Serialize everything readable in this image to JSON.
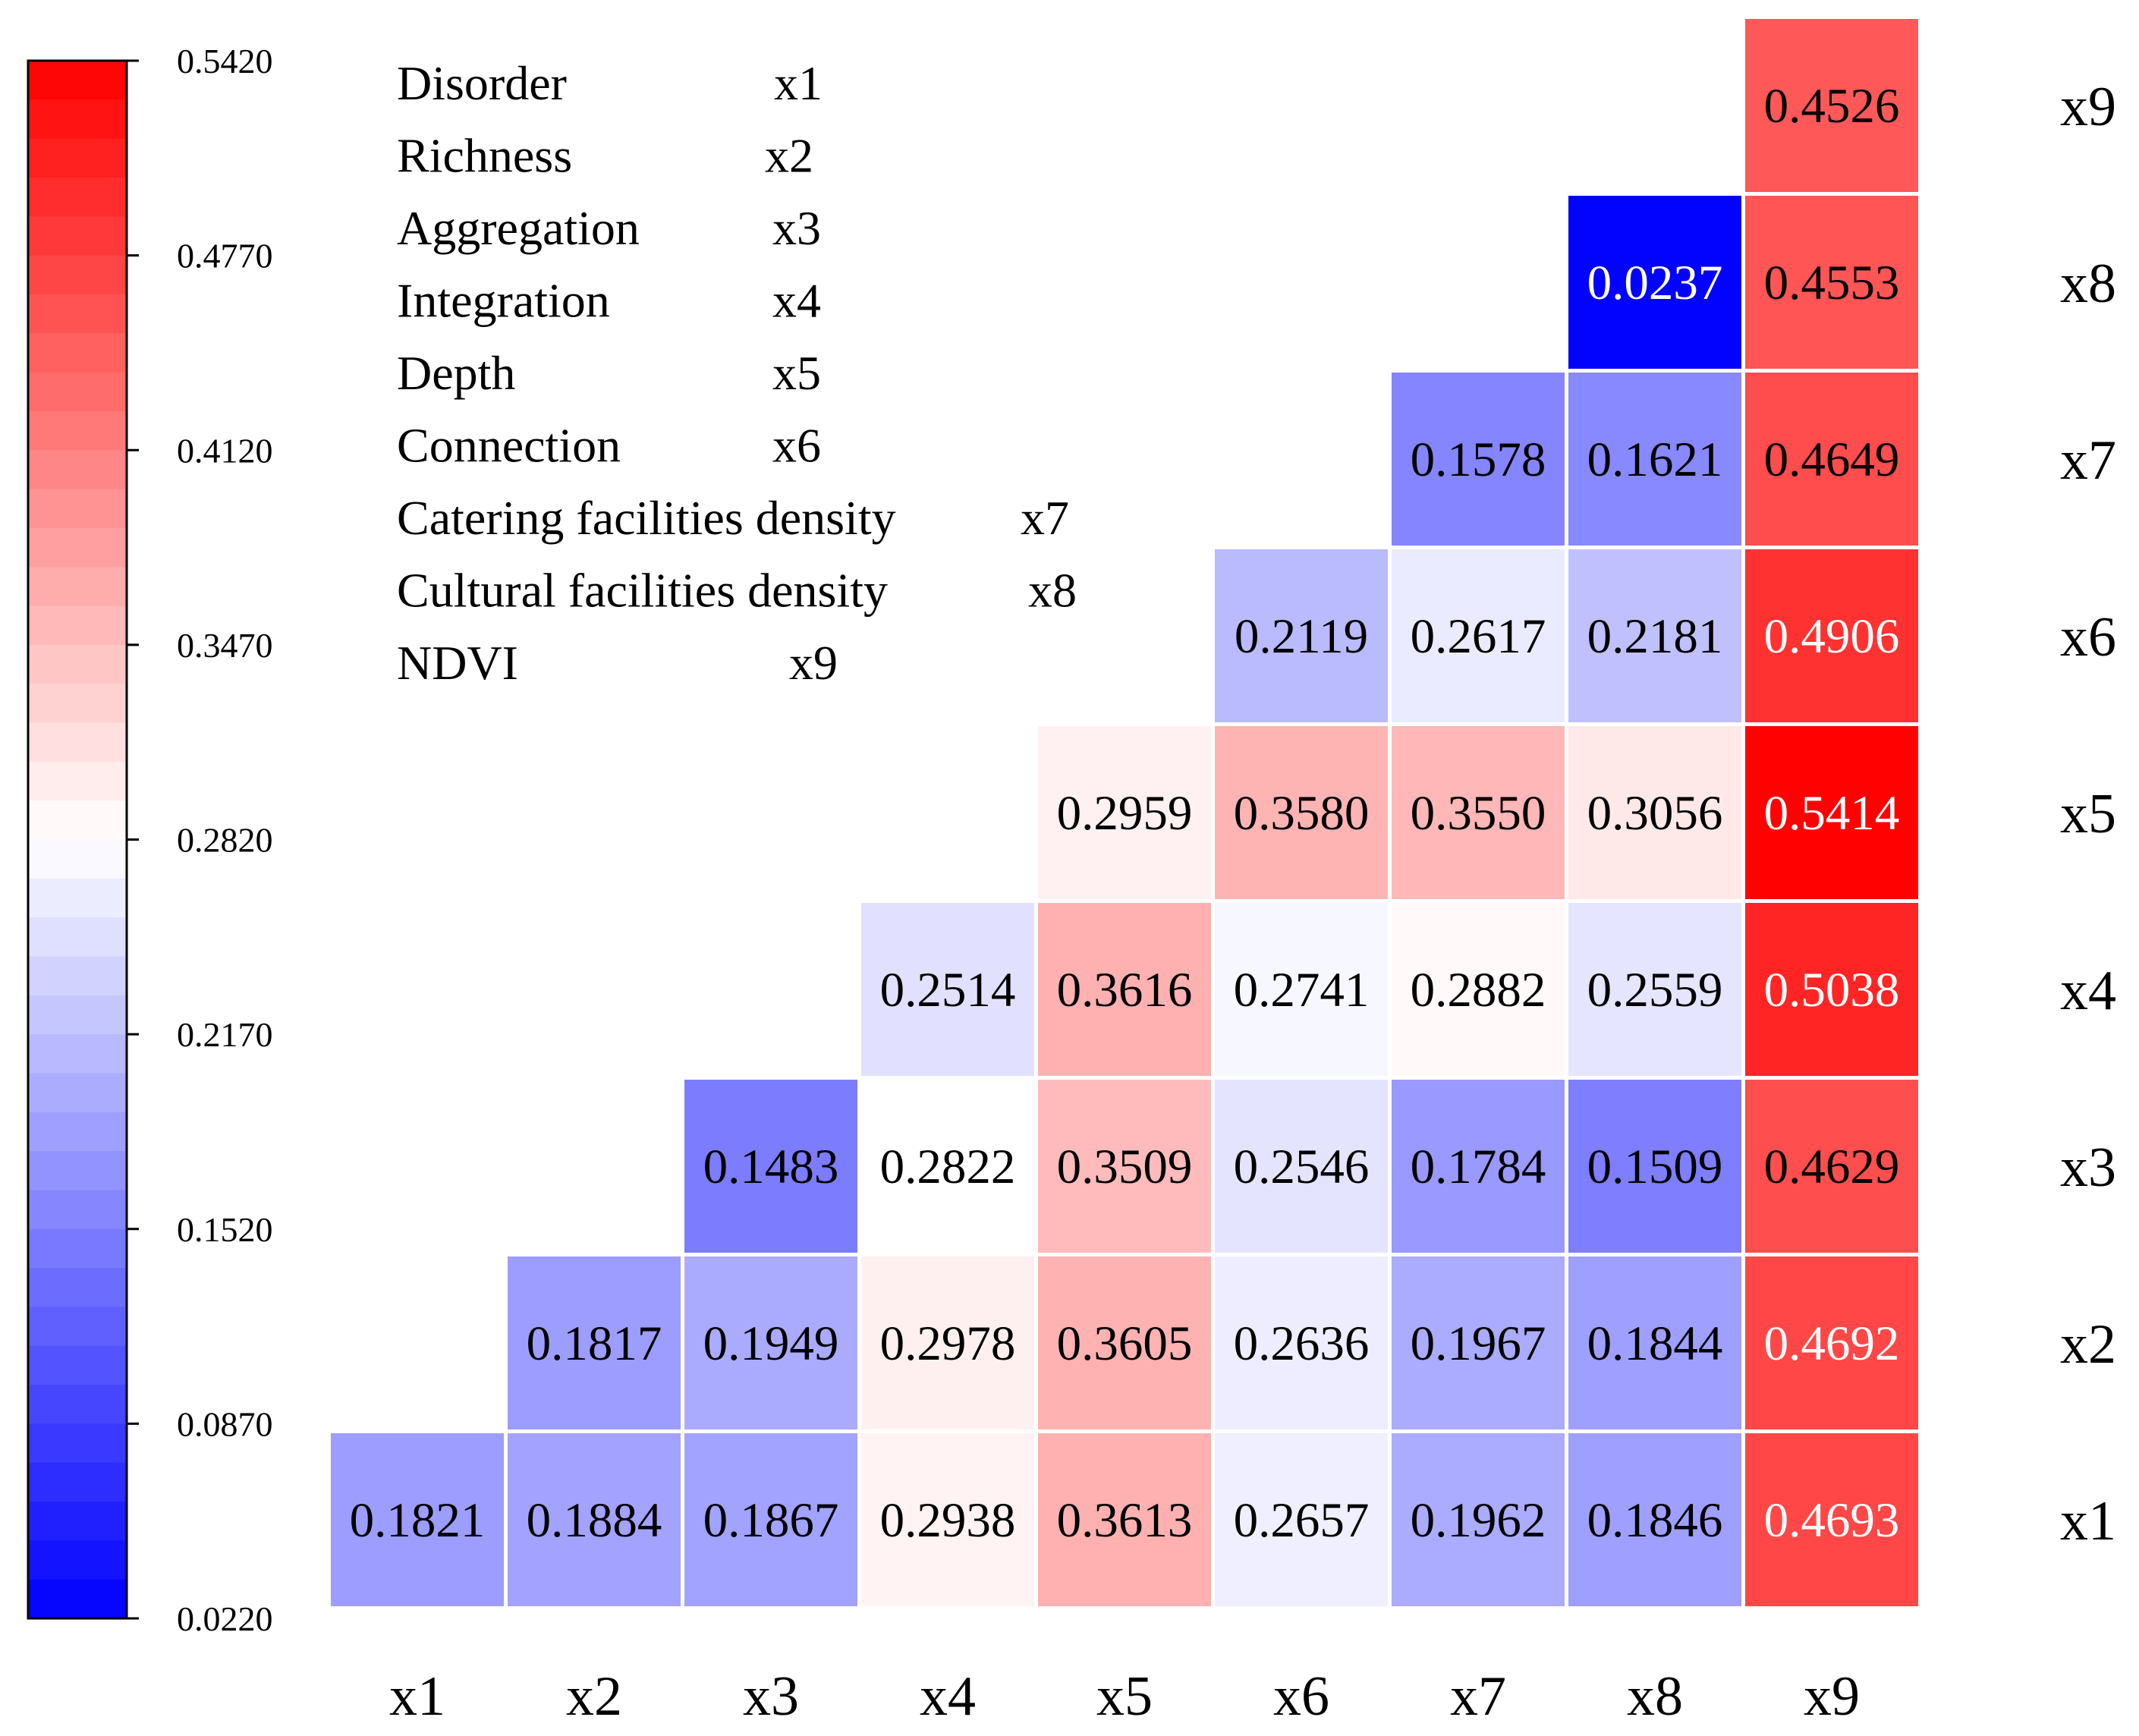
{
  "chart_data": {
    "type": "heatmap",
    "x_categories": [
      "x1",
      "x2",
      "x3",
      "x4",
      "x5",
      "x6",
      "x7",
      "x8",
      "x9"
    ],
    "y_categories": [
      "x1",
      "x2",
      "x3",
      "x4",
      "x5",
      "x6",
      "x7",
      "x8",
      "x9"
    ],
    "rows": [
      {
        "label": "x9",
        "values": [
          null,
          null,
          null,
          null,
          null,
          null,
          null,
          null,
          "0.4526"
        ]
      },
      {
        "label": "x8",
        "values": [
          null,
          null,
          null,
          null,
          null,
          null,
          null,
          "0.0237",
          "0.4553"
        ]
      },
      {
        "label": "x7",
        "values": [
          null,
          null,
          null,
          null,
          null,
          null,
          "0.1578",
          "0.1621",
          "0.4649"
        ]
      },
      {
        "label": "x6",
        "values": [
          null,
          null,
          null,
          null,
          null,
          "0.2119",
          "0.2617",
          "0.2181",
          "0.4906"
        ]
      },
      {
        "label": "x5",
        "values": [
          null,
          null,
          null,
          null,
          "0.2959",
          "0.3580",
          "0.3550",
          "0.3056",
          "0.5414"
        ]
      },
      {
        "label": "x4",
        "values": [
          null,
          null,
          null,
          "0.2514",
          "0.3616",
          "0.2741",
          "0.2882",
          "0.2559",
          "0.5038"
        ]
      },
      {
        "label": "x3",
        "values": [
          null,
          null,
          "0.1483",
          "0.2822",
          "0.3509",
          "0.2546",
          "0.1784",
          "0.1509",
          "0.4629"
        ]
      },
      {
        "label": "x2",
        "values": [
          null,
          "0.1817",
          "0.1949",
          "0.2978",
          "0.3605",
          "0.2636",
          "0.1967",
          "0.1844",
          "0.4692"
        ]
      },
      {
        "label": "x1",
        "values": [
          "0.1821",
          "0.1884",
          "0.1867",
          "0.2938",
          "0.3613",
          "0.2657",
          "0.1962",
          "0.1846",
          "0.4693"
        ]
      }
    ],
    "colorbar": {
      "min": 0.022,
      "max": 0.542,
      "ticks": [
        "0.5420",
        "0.4770",
        "0.4120",
        "0.3470",
        "0.2820",
        "0.2170",
        "0.1520",
        "0.0870",
        "0.0220"
      ],
      "colors": {
        "low": "#0000ff",
        "mid": "#ffffff",
        "high": "#ff0000"
      },
      "bands": 40
    },
    "legend_items": [
      {
        "name": "Disorder",
        "code": "x1"
      },
      {
        "name": "Richness",
        "code": "x2"
      },
      {
        "name": "Aggregation",
        "code": "x3"
      },
      {
        "name": "Integration",
        "code": "x4"
      },
      {
        "name": "Depth",
        "code": "x5"
      },
      {
        "name": "Connection",
        "code": "x6"
      },
      {
        "name": "Catering facilities density",
        "code": "x7"
      },
      {
        "name": "Cultural facilities density",
        "code": "x8"
      },
      {
        "name": "NDVI",
        "code": "x9"
      }
    ]
  }
}
